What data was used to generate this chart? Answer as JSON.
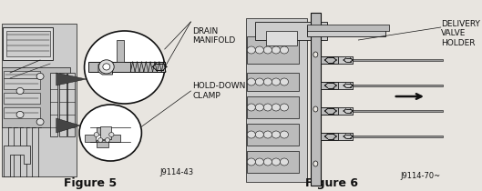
{
  "bg_color": "#e8e5e0",
  "fig_width": 5.29,
  "fig_height": 2.1,
  "dpi": 100,
  "left_label": "Figure 5",
  "left_ref": "J9114-43",
  "right_label": "Figure 6",
  "right_ref": "J9114-70~",
  "ann_drain": "DRAIN\nMANIFOLD",
  "ann_hold": "HOLD-DOWN\nCLAMP",
  "ann_delivery": "DELIVERY\nVALVE\nHOLDER",
  "font_color": "#111111",
  "ann_fontsize": 6.5,
  "label_fontsize": 9,
  "ref_fontsize": 6,
  "gray1": "#999999",
  "gray2": "#bbbbbb",
  "gray3": "#cccccc",
  "gray4": "#dddddd",
  "gray5": "#888888",
  "gray6": "#444444",
  "white": "#ffffff"
}
